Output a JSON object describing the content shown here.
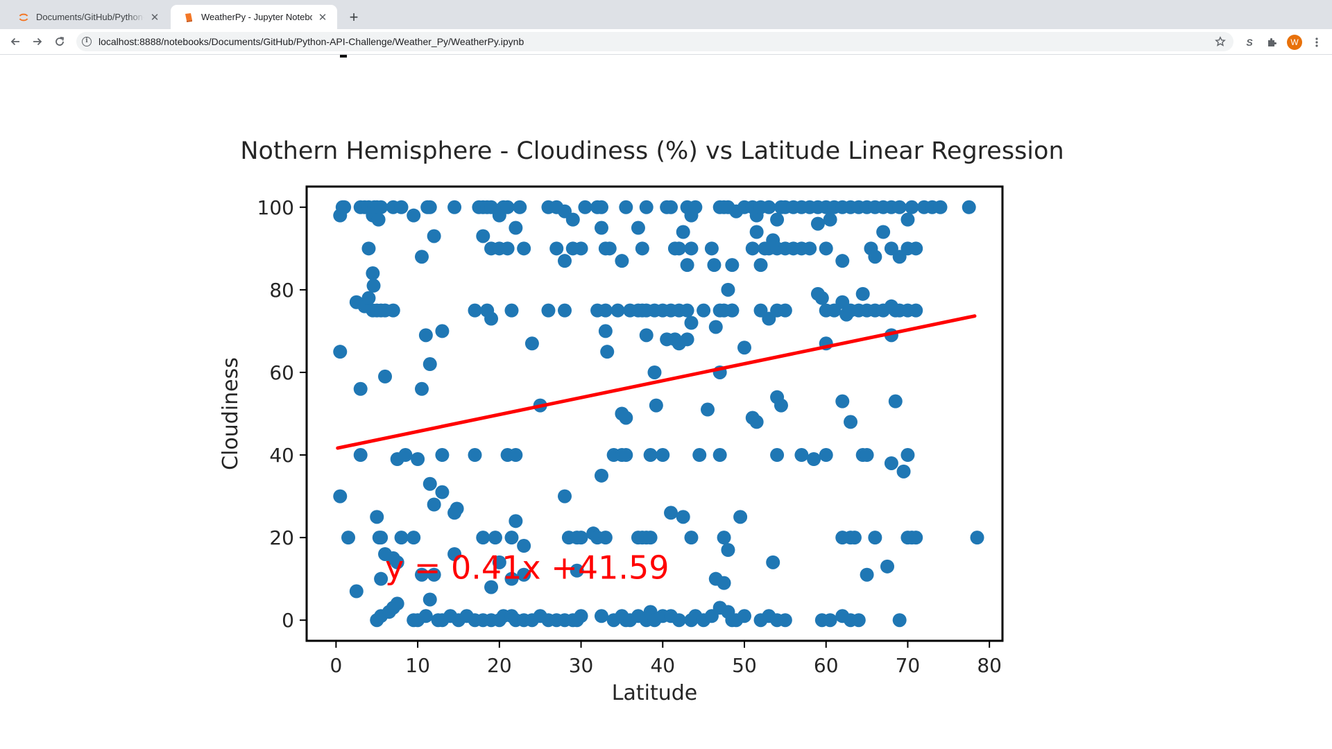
{
  "browser": {
    "tabs": [
      {
        "title": "Documents/GitHub/Python-API-Challenge/",
        "active": false
      },
      {
        "title": "WeatherPy - Jupyter Notebook",
        "active": true
      }
    ],
    "new_tab_label": "+",
    "url": "localhost:8888/notebooks/Documents/GitHub/Python-API-Challenge/Weather_Py/WeatherPy.ipynb",
    "profile_initial": "W",
    "extension_label": "S"
  },
  "chart_data": {
    "type": "scatter",
    "title": "Nothern Hemisphere - Cloudiness (%) vs Latitude Linear Regression",
    "xlabel": "Latitude",
    "ylabel": "Cloudiness",
    "xlim": [
      -3.6,
      81.6
    ],
    "ylim": [
      -5,
      105
    ],
    "xticks": [
      0,
      10,
      20,
      30,
      40,
      50,
      60,
      70,
      80
    ],
    "yticks": [
      0,
      20,
      40,
      60,
      80,
      100
    ],
    "grid": false,
    "point_color": "#1f77b4",
    "regression": {
      "slope": 0.41,
      "intercept": 41.59,
      "x_range": [
        0.2,
        78.2
      ],
      "color": "#ff0000",
      "equation": "y = 0.41x +41.59",
      "annotation_at": [
        6,
        10
      ]
    },
    "points": [
      [
        0.5,
        98
      ],
      [
        0.8,
        100
      ],
      [
        1.0,
        100
      ],
      [
        3,
        100
      ],
      [
        3.5,
        100
      ],
      [
        4,
        100
      ],
      [
        4.5,
        98
      ],
      [
        4.7,
        100
      ],
      [
        5,
        100
      ],
      [
        5.2,
        97
      ],
      [
        5.5,
        100
      ],
      [
        7,
        100
      ],
      [
        8,
        100
      ],
      [
        9.5,
        98
      ],
      [
        11.2,
        100
      ],
      [
        11.5,
        100
      ],
      [
        14.5,
        100
      ],
      [
        17.5,
        100
      ],
      [
        18,
        100
      ],
      [
        18.5,
        100
      ],
      [
        19,
        100
      ],
      [
        20,
        98
      ],
      [
        20.5,
        100
      ],
      [
        21,
        100
      ],
      [
        22.5,
        100
      ],
      [
        26,
        100
      ],
      [
        27,
        100
      ],
      [
        28,
        99
      ],
      [
        29,
        97
      ],
      [
        30.5,
        100
      ],
      [
        32,
        100
      ],
      [
        32.5,
        100
      ],
      [
        35.5,
        100
      ],
      [
        38,
        100
      ],
      [
        40.5,
        100
      ],
      [
        41,
        100
      ],
      [
        43,
        100
      ],
      [
        43.5,
        98
      ],
      [
        44,
        100
      ],
      [
        47,
        100
      ],
      [
        47.5,
        100
      ],
      [
        48,
        100
      ],
      [
        49,
        99
      ],
      [
        50,
        100
      ],
      [
        51,
        100
      ],
      [
        51.5,
        98
      ],
      [
        52,
        100
      ],
      [
        53,
        100
      ],
      [
        54,
        97
      ],
      [
        54.5,
        100
      ],
      [
        55,
        100
      ],
      [
        56,
        100
      ],
      [
        57,
        100
      ],
      [
        58,
        100
      ],
      [
        59,
        100
      ],
      [
        60,
        100
      ],
      [
        60.5,
        97
      ],
      [
        61,
        100
      ],
      [
        62,
        100
      ],
      [
        63,
        100
      ],
      [
        64,
        100
      ],
      [
        65,
        100
      ],
      [
        66,
        100
      ],
      [
        67,
        100
      ],
      [
        68,
        100
      ],
      [
        69,
        100
      ],
      [
        70,
        97
      ],
      [
        70.5,
        100
      ],
      [
        72,
        100
      ],
      [
        73,
        100
      ],
      [
        74,
        100
      ],
      [
        77.5,
        100
      ],
      [
        4,
        90
      ],
      [
        10.5,
        88
      ],
      [
        12,
        93
      ],
      [
        18,
        93
      ],
      [
        19,
        90
      ],
      [
        20,
        90
      ],
      [
        21,
        90
      ],
      [
        22,
        95
      ],
      [
        23,
        90
      ],
      [
        27,
        90
      ],
      [
        28,
        87
      ],
      [
        29,
        90
      ],
      [
        30,
        90
      ],
      [
        32.5,
        95
      ],
      [
        33,
        90
      ],
      [
        33.5,
        90
      ],
      [
        35,
        87
      ],
      [
        37,
        95
      ],
      [
        37.5,
        90
      ],
      [
        41.5,
        90
      ],
      [
        42,
        90
      ],
      [
        42.5,
        94
      ],
      [
        43,
        86
      ],
      [
        43.5,
        90
      ],
      [
        46,
        90
      ],
      [
        46.3,
        86
      ],
      [
        48.5,
        86
      ],
      [
        51,
        90
      ],
      [
        51.5,
        94
      ],
      [
        52,
        86
      ],
      [
        52.5,
        90
      ],
      [
        53,
        90
      ],
      [
        53.5,
        92
      ],
      [
        54,
        90
      ],
      [
        55,
        90
      ],
      [
        56,
        90
      ],
      [
        57,
        90
      ],
      [
        58,
        90
      ],
      [
        59,
        96
      ],
      [
        60,
        90
      ],
      [
        62,
        87
      ],
      [
        65.5,
        90
      ],
      [
        66,
        88
      ],
      [
        67,
        94
      ],
      [
        68,
        90
      ],
      [
        69,
        88
      ],
      [
        70,
        90
      ],
      [
        71,
        90
      ],
      [
        4.5,
        84
      ],
      [
        4.6,
        81
      ],
      [
        2.5,
        77
      ],
      [
        3.5,
        76
      ],
      [
        4,
        78
      ],
      [
        4.5,
        75
      ],
      [
        5,
        75
      ],
      [
        5.5,
        75
      ],
      [
        6,
        75
      ],
      [
        7,
        75
      ],
      [
        17,
        75
      ],
      [
        18.5,
        75
      ],
      [
        19,
        73
      ],
      [
        21.5,
        75
      ],
      [
        26,
        75
      ],
      [
        28,
        75
      ],
      [
        32,
        75
      ],
      [
        33,
        75
      ],
      [
        34.5,
        75
      ],
      [
        36,
        75
      ],
      [
        37,
        75
      ],
      [
        37.5,
        75
      ],
      [
        38,
        75
      ],
      [
        39,
        75
      ],
      [
        40,
        75
      ],
      [
        41,
        75
      ],
      [
        42,
        75
      ],
      [
        43,
        75
      ],
      [
        43.5,
        72
      ],
      [
        45,
        75
      ],
      [
        46.5,
        71
      ],
      [
        47,
        75
      ],
      [
        47.5,
        75
      ],
      [
        48,
        80
      ],
      [
        48.5,
        75
      ],
      [
        52,
        75
      ],
      [
        53,
        73
      ],
      [
        54,
        75
      ],
      [
        55,
        75
      ],
      [
        59,
        79
      ],
      [
        59.5,
        78
      ],
      [
        60,
        75
      ],
      [
        61,
        75
      ],
      [
        62,
        77
      ],
      [
        62.5,
        74
      ],
      [
        63,
        75
      ],
      [
        64,
        75
      ],
      [
        64.5,
        79
      ],
      [
        65,
        75
      ],
      [
        66,
        75
      ],
      [
        67,
        75
      ],
      [
        68,
        76
      ],
      [
        68.5,
        75
      ],
      [
        69,
        75
      ],
      [
        70,
        75
      ],
      [
        71,
        75
      ],
      [
        0.5,
        65
      ],
      [
        11,
        69
      ],
      [
        13,
        70
      ],
      [
        24,
        67
      ],
      [
        33,
        70
      ],
      [
        33.2,
        65
      ],
      [
        38,
        69
      ],
      [
        40.5,
        68
      ],
      [
        41.5,
        68
      ],
      [
        42,
        67
      ],
      [
        43,
        68
      ],
      [
        47,
        60
      ],
      [
        48.5,
        75
      ],
      [
        50,
        66
      ],
      [
        60,
        67
      ],
      [
        68,
        69
      ],
      [
        3,
        56
      ],
      [
        6,
        59
      ],
      [
        10.5,
        56
      ],
      [
        11.5,
        62
      ],
      [
        25,
        52
      ],
      [
        35,
        50
      ],
      [
        35.5,
        49
      ],
      [
        39,
        60
      ],
      [
        39.2,
        52
      ],
      [
        45.5,
        51
      ],
      [
        51,
        49
      ],
      [
        51.5,
        48
      ],
      [
        54,
        54
      ],
      [
        54.5,
        52
      ],
      [
        62,
        53
      ],
      [
        63,
        48
      ],
      [
        68.5,
        53
      ],
      [
        3,
        40
      ],
      [
        7.5,
        39
      ],
      [
        8.5,
        40
      ],
      [
        10,
        39
      ],
      [
        13,
        40
      ],
      [
        17,
        40
      ],
      [
        21,
        40
      ],
      [
        22,
        40
      ],
      [
        34,
        40
      ],
      [
        35,
        40
      ],
      [
        35.5,
        40
      ],
      [
        38.5,
        40
      ],
      [
        40,
        40
      ],
      [
        44.5,
        40
      ],
      [
        47,
        40
      ],
      [
        54,
        40
      ],
      [
        57,
        40
      ],
      [
        58.5,
        39
      ],
      [
        60,
        40
      ],
      [
        64.5,
        40
      ],
      [
        65,
        40
      ],
      [
        68,
        38
      ],
      [
        69.5,
        36
      ],
      [
        70,
        40
      ],
      [
        0.5,
        30
      ],
      [
        11.5,
        33
      ],
      [
        12,
        28
      ],
      [
        13,
        31
      ],
      [
        14.5,
        26
      ],
      [
        14.8,
        27
      ],
      [
        28,
        30
      ],
      [
        32.5,
        35
      ],
      [
        41,
        26
      ],
      [
        42.5,
        25
      ],
      [
        49.5,
        25
      ],
      [
        1.5,
        20
      ],
      [
        5,
        25
      ],
      [
        5.3,
        20
      ],
      [
        5.5,
        20
      ],
      [
        8,
        20
      ],
      [
        9.5,
        20
      ],
      [
        18,
        20
      ],
      [
        19.5,
        20
      ],
      [
        20,
        14
      ],
      [
        21.5,
        20
      ],
      [
        22,
        24
      ],
      [
        23,
        18
      ],
      [
        28.5,
        20
      ],
      [
        29.5,
        20
      ],
      [
        30,
        20
      ],
      [
        31.5,
        21
      ],
      [
        32,
        20
      ],
      [
        33,
        20
      ],
      [
        37,
        20
      ],
      [
        37.5,
        20
      ],
      [
        38,
        20
      ],
      [
        38.5,
        20
      ],
      [
        43.5,
        20
      ],
      [
        47.5,
        20
      ],
      [
        48,
        17
      ],
      [
        62,
        20
      ],
      [
        63,
        20
      ],
      [
        63.5,
        20
      ],
      [
        66,
        20
      ],
      [
        70,
        20
      ],
      [
        70.5,
        20
      ],
      [
        71,
        20
      ],
      [
        78.5,
        20
      ],
      [
        2.5,
        7
      ],
      [
        5.5,
        10
      ],
      [
        6,
        16
      ],
      [
        7,
        15
      ],
      [
        7.5,
        14
      ],
      [
        10.5,
        11
      ],
      [
        11.5,
        5
      ],
      [
        12,
        11
      ],
      [
        14.5,
        16
      ],
      [
        19,
        8
      ],
      [
        21.5,
        10
      ],
      [
        23,
        11
      ],
      [
        29.5,
        12
      ],
      [
        46.5,
        10
      ],
      [
        47.5,
        9
      ],
      [
        53.5,
        14
      ],
      [
        65,
        11
      ],
      [
        67.5,
        13
      ],
      [
        5,
        0
      ],
      [
        5.5,
        1
      ],
      [
        6.5,
        2
      ],
      [
        7,
        3
      ],
      [
        7.5,
        4
      ],
      [
        9.5,
        0
      ],
      [
        10,
        0
      ],
      [
        11,
        1
      ],
      [
        12.5,
        0
      ],
      [
        13,
        0
      ],
      [
        14,
        1
      ],
      [
        15,
        0
      ],
      [
        16,
        1
      ],
      [
        17,
        0
      ],
      [
        18,
        0
      ],
      [
        19,
        0
      ],
      [
        20,
        0
      ],
      [
        20.5,
        1
      ],
      [
        21.5,
        1
      ],
      [
        22,
        0
      ],
      [
        23,
        0
      ],
      [
        24,
        0
      ],
      [
        25,
        1
      ],
      [
        26,
        0
      ],
      [
        27,
        0
      ],
      [
        28,
        0
      ],
      [
        29,
        0
      ],
      [
        29.5,
        0
      ],
      [
        30,
        1
      ],
      [
        32.5,
        1
      ],
      [
        34,
        0
      ],
      [
        35,
        1
      ],
      [
        35.5,
        0
      ],
      [
        36,
        0
      ],
      [
        37,
        1
      ],
      [
        38,
        0
      ],
      [
        38.5,
        2
      ],
      [
        39,
        0
      ],
      [
        40,
        1
      ],
      [
        41,
        1
      ],
      [
        42,
        0
      ],
      [
        43.5,
        0
      ],
      [
        44,
        1
      ],
      [
        45,
        0
      ],
      [
        46,
        1
      ],
      [
        47,
        3
      ],
      [
        48,
        2
      ],
      [
        48.5,
        0
      ],
      [
        49,
        0
      ],
      [
        50,
        1
      ],
      [
        52,
        0
      ],
      [
        53,
        1
      ],
      [
        54,
        0
      ],
      [
        55,
        0
      ],
      [
        59.5,
        0
      ],
      [
        60.5,
        0
      ],
      [
        62,
        1
      ],
      [
        63,
        0
      ],
      [
        64,
        0
      ],
      [
        69,
        0
      ]
    ]
  }
}
